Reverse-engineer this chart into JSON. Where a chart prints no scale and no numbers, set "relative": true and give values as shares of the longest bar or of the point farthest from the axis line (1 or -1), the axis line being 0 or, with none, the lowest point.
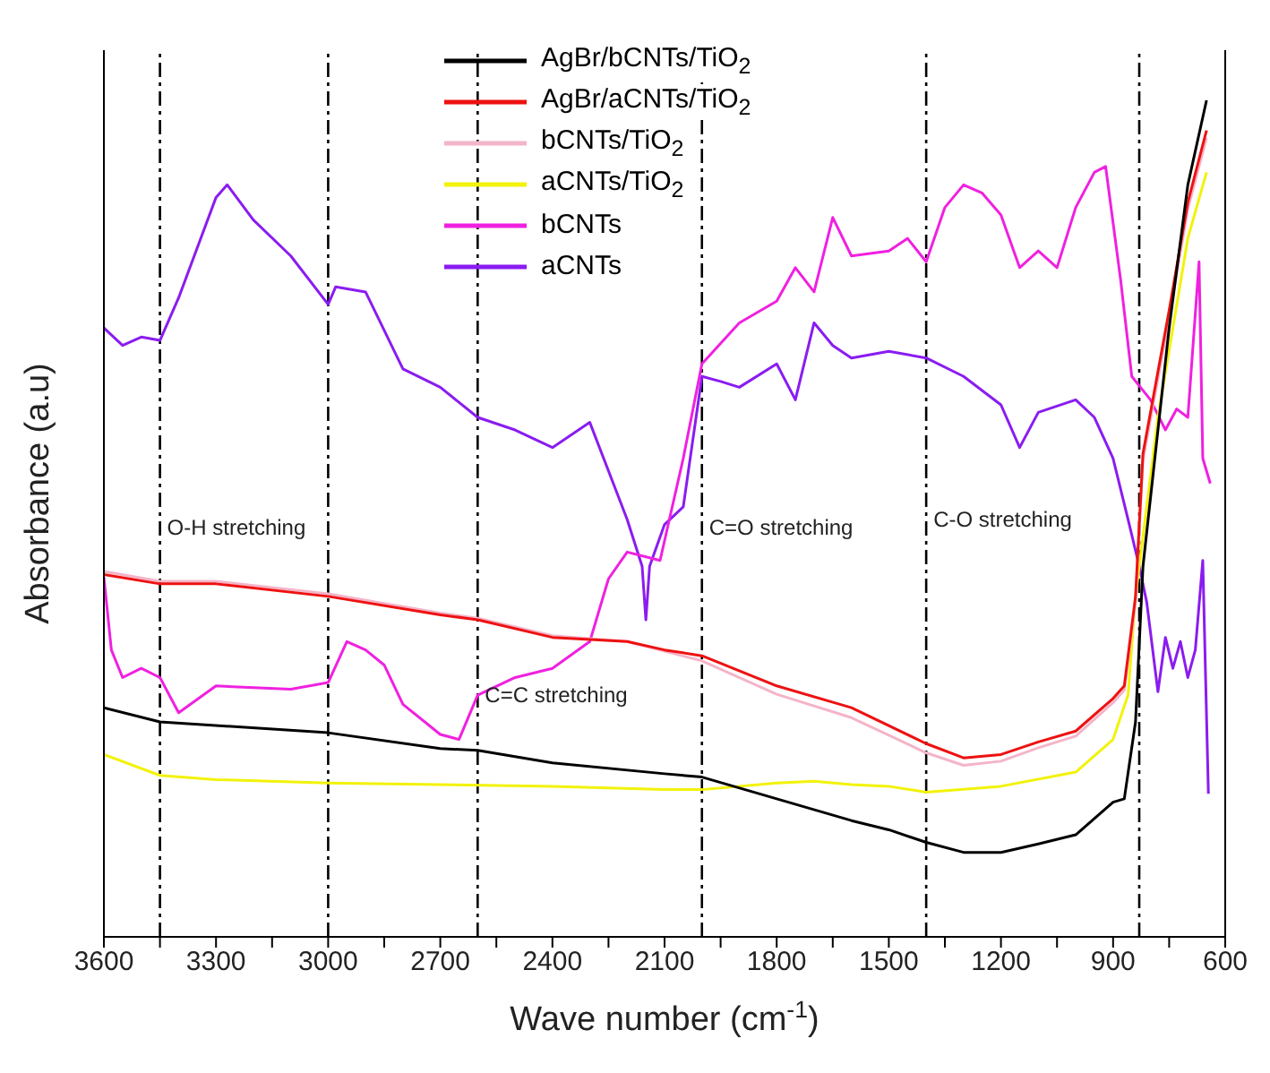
{
  "chart_data": {
    "type": "line",
    "relative": true,
    "xlabel": "Wave number (cm$^{-1}$)",
    "ylabel": "Absorbance (a.u)",
    "xlim": [
      3600,
      600
    ],
    "xticks": [
      3600,
      {
        "value": 3450,
        "label": null
      },
      3300,
      {
        "value": 3150,
        "label": null
      },
      3000,
      {
        "value": 2850,
        "label": null
      },
      2700,
      {
        "value": 2550,
        "label": null
      },
      2400,
      {
        "value": 2250,
        "label": null
      },
      2100,
      {
        "value": 1950,
        "label": null
      },
      1800,
      {
        "value": 1650,
        "label": null
      },
      1500,
      {
        "value": 1350,
        "label": null
      },
      1200,
      {
        "value": 1050,
        "label": null
      },
      900,
      {
        "value": 750,
        "label": null
      },
      600
    ],
    "legend": "top",
    "marker": "none",
    "line_style": "solid",
    "series": [
      {
        "name": "AgBr/bCNTs/TiO$_{2}$",
        "color": "#000000",
        "x": [
          3600,
          3450,
          3000,
          2700,
          2600,
          2400,
          2100,
          2000,
          1800,
          1600,
          1500,
          1400,
          1300,
          1200,
          1100,
          1000,
          900,
          870,
          840,
          820,
          750,
          700,
          650
        ],
        "values": [
          0.274,
          0.257,
          0.244,
          0.225,
          0.223,
          0.208,
          0.195,
          0.191,
          0.165,
          0.139,
          0.128,
          0.113,
          0.101,
          0.101,
          0.111,
          0.122,
          0.161,
          0.165,
          0.257,
          0.443,
          0.728,
          0.899,
          1.0
        ]
      },
      {
        "name": "AgBr/aCNTs/TiO$_{2}$",
        "color": "#ee1111",
        "x": [
          3600,
          3450,
          3300,
          3000,
          2700,
          2600,
          2400,
          2200,
          2100,
          2000,
          1800,
          1600,
          1400,
          1300,
          1200,
          1100,
          1000,
          900,
          870,
          840,
          820,
          750,
          700,
          650
        ],
        "values": [
          0.433,
          0.422,
          0.422,
          0.407,
          0.385,
          0.379,
          0.358,
          0.353,
          0.343,
          0.336,
          0.3,
          0.274,
          0.231,
          0.214,
          0.218,
          0.233,
          0.246,
          0.285,
          0.3,
          0.407,
          0.578,
          0.749,
          0.878,
          0.964
        ]
      },
      {
        "name": "bCNTs/TiO$_{2}$",
        "color": "#f4b4c8",
        "x": [
          3600,
          3450,
          3300,
          3000,
          2700,
          2600,
          2400,
          2200,
          2000,
          1800,
          1600,
          1400,
          1300,
          1200,
          1100,
          1000,
          900,
          870,
          840,
          820,
          750,
          700,
          650
        ],
        "values": [
          0.437,
          0.425,
          0.425,
          0.41,
          0.387,
          0.381,
          0.36,
          0.353,
          0.33,
          0.29,
          0.262,
          0.22,
          0.205,
          0.21,
          0.226,
          0.24,
          0.28,
          0.295,
          0.4,
          0.57,
          0.74,
          0.87,
          0.955
        ]
      },
      {
        "name": "aCNTs/TiO$_{2}$",
        "color": "#f2f20a",
        "x": [
          3600,
          3450,
          3300,
          3000,
          2700,
          2400,
          2100,
          2000,
          1800,
          1700,
          1600,
          1500,
          1400,
          1200,
          1000,
          900,
          860,
          840,
          780,
          700,
          650
        ],
        "values": [
          0.218,
          0.193,
          0.188,
          0.184,
          0.182,
          0.18,
          0.176,
          0.176,
          0.184,
          0.186,
          0.182,
          0.18,
          0.173,
          0.18,
          0.197,
          0.236,
          0.289,
          0.407,
          0.621,
          0.835,
          0.914
        ]
      },
      {
        "name": "bCNTs",
        "color": "#f020e0",
        "x": [
          3600,
          3580,
          3550,
          3500,
          3450,
          3400,
          3300,
          3100,
          3000,
          2950,
          2900,
          2850,
          2800,
          2700,
          2650,
          2600,
          2500,
          2400,
          2300,
          2250,
          2200,
          2112,
          2050,
          2000,
          1900,
          1800,
          1750,
          1700,
          1650,
          1600,
          1500,
          1450,
          1400,
          1350,
          1300,
          1250,
          1200,
          1150,
          1100,
          1050,
          1000,
          950,
          920,
          880,
          850,
          800,
          760,
          730,
          700,
          670,
          660,
          640
        ],
        "values": [
          0.43,
          0.343,
          0.31,
          0.321,
          0.31,
          0.268,
          0.3,
          0.296,
          0.304,
          0.353,
          0.343,
          0.325,
          0.278,
          0.242,
          0.236,
          0.289,
          0.31,
          0.321,
          0.353,
          0.428,
          0.46,
          0.45,
          0.572,
          0.685,
          0.734,
          0.76,
          0.8,
          0.771,
          0.86,
          0.814,
          0.82,
          0.835,
          0.807,
          0.872,
          0.899,
          0.889,
          0.863,
          0.8,
          0.82,
          0.8,
          0.872,
          0.914,
          0.921,
          0.786,
          0.67,
          0.642,
          0.606,
          0.631,
          0.621,
          0.807,
          0.572,
          0.542
        ]
      },
      {
        "name": "aCNTs",
        "color": "#8a1cf0",
        "x": [
          3600,
          3550,
          3500,
          3450,
          3400,
          3300,
          3270,
          3200,
          3100,
          3000,
          2980,
          2900,
          2800,
          2700,
          2600,
          2500,
          2400,
          2300,
          2250,
          2200,
          2160,
          2150,
          2140,
          2100,
          2050,
          2000,
          1950,
          1900,
          1800,
          1750,
          1700,
          1650,
          1600,
          1500,
          1400,
          1300,
          1200,
          1150,
          1100,
          1000,
          950,
          900,
          860,
          830,
          810,
          780,
          760,
          740,
          720,
          700,
          680,
          660,
          645
        ],
        "values": [
          0.728,
          0.707,
          0.717,
          0.713,
          0.764,
          0.884,
          0.899,
          0.857,
          0.814,
          0.756,
          0.777,
          0.771,
          0.679,
          0.657,
          0.621,
          0.606,
          0.585,
          0.615,
          0.557,
          0.499,
          0.443,
          0.379,
          0.443,
          0.493,
          0.514,
          0.67,
          0.664,
          0.657,
          0.685,
          0.642,
          0.734,
          0.707,
          0.692,
          0.7,
          0.692,
          0.67,
          0.636,
          0.585,
          0.627,
          0.642,
          0.621,
          0.572,
          0.499,
          0.443,
          0.4,
          0.293,
          0.358,
          0.321,
          0.353,
          0.31,
          0.343,
          0.45,
          0.171
        ]
      }
    ],
    "ref_lines": [
      {
        "axis": "x",
        "value": 3450,
        "color": "#000000",
        "line_style": "dashed"
      },
      {
        "axis": "x",
        "value": 3000,
        "color": "#000000",
        "line_style": "dashed"
      },
      {
        "axis": "x",
        "value": 2600,
        "color": "#000000",
        "line_style": "dashed"
      },
      {
        "axis": "x",
        "value": 2000,
        "color": "#000000",
        "line_style": "dashed"
      },
      {
        "axis": "x",
        "value": 1400,
        "color": "#000000",
        "line_style": "dashed"
      },
      {
        "axis": "x",
        "value": 830,
        "color": "#000000",
        "line_style": "dashed"
      }
    ],
    "annotations": [
      {
        "text": "O-H stretching",
        "x": 3450,
        "y": 0.49
      },
      {
        "text": "C=C stretching",
        "x": 2600,
        "y": 0.29
      },
      {
        "text": "C=O stretching",
        "x": 2000,
        "y": 0.49
      },
      {
        "text": "C-O stretching",
        "x": 1400,
        "y": 0.5
      }
    ]
  }
}
